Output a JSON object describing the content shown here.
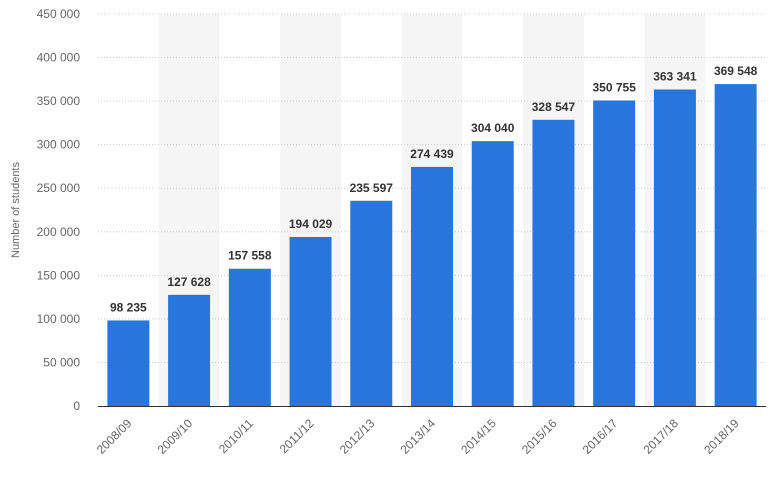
{
  "chart_data": {
    "type": "bar",
    "title": "",
    "xlabel": "",
    "ylabel": "Number of students",
    "categories": [
      "2008/09",
      "2009/10",
      "2010/11",
      "2011/12",
      "2012/13",
      "2013/14",
      "2014/15",
      "2015/16",
      "2016/17",
      "2017/18",
      "2018/19"
    ],
    "values": [
      98235,
      127628,
      157558,
      194029,
      235597,
      274439,
      304040,
      328547,
      350755,
      363341,
      369548
    ],
    "data_labels": [
      "98 235",
      "127 628",
      "157 558",
      "194 029",
      "235 597",
      "274 439",
      "304 040",
      "328 547",
      "350 755",
      "363 341",
      "369 548"
    ],
    "yticks": [
      0,
      50000,
      100000,
      150000,
      200000,
      250000,
      300000,
      350000,
      400000,
      450000
    ],
    "ytick_labels": [
      "0",
      "50 000",
      "100 000",
      "150 000",
      "200 000",
      "250 000",
      "300 000",
      "350 000",
      "400 000",
      "450 000"
    ],
    "ylim": [
      0,
      450000
    ],
    "grid": true,
    "bar_color": "#2876dd",
    "band_color": "#f5f5f5",
    "grid_color": "#cccccc"
  }
}
